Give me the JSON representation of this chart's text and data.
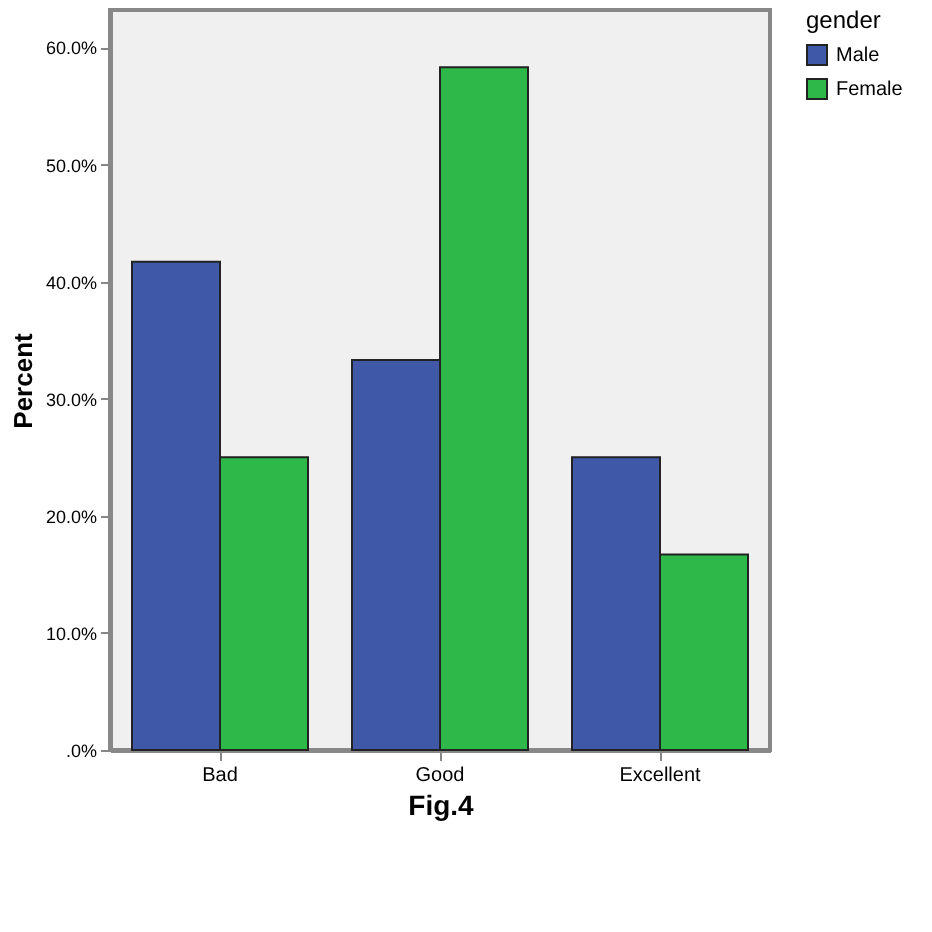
{
  "chart_data": {
    "type": "bar",
    "xlabel": "Fig.4",
    "ylabel": "Percent",
    "legend_title": "gender",
    "categories": [
      "Bad",
      "Good",
      "Excellent"
    ],
    "series": [
      {
        "name": "Male",
        "color": "#3f58a8",
        "values": [
          41.7,
          33.3,
          25.0
        ]
      },
      {
        "name": "Female",
        "color": "#2fb84a",
        "values": [
          25.0,
          58.3,
          16.7
        ]
      }
    ],
    "ylim": [
      0,
      63.2
    ],
    "yticks": [
      {
        "value": 0,
        "label": ".0%"
      },
      {
        "value": 10,
        "label": "10.0%"
      },
      {
        "value": 20,
        "label": "20.0%"
      },
      {
        "value": 30,
        "label": "30.0%"
      },
      {
        "value": 40,
        "label": "40.0%"
      },
      {
        "value": 50,
        "label": "50.0%"
      },
      {
        "value": 60,
        "label": "60.0%"
      }
    ],
    "grid": false,
    "legend": "top right"
  }
}
